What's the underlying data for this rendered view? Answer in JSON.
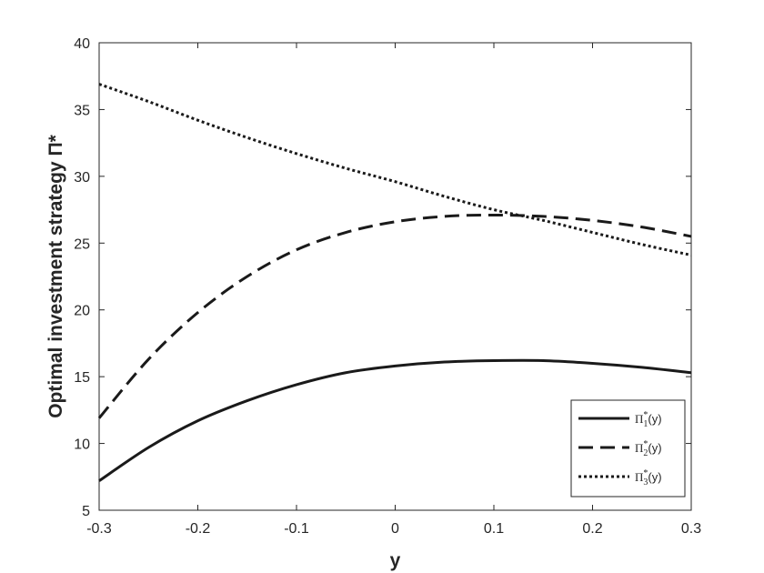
{
  "chart_data": {
    "type": "line",
    "title": "",
    "xlabel": "y",
    "ylabel": "Optimal investment strategy Π*",
    "xlim": [
      -0.3,
      0.3
    ],
    "ylim": [
      5,
      40
    ],
    "xticks": [
      -0.3,
      -0.2,
      -0.1,
      0,
      0.1,
      0.2,
      0.3
    ],
    "xtick_labels": [
      "-0.3",
      "-0.2",
      "-0.1",
      "0",
      "0.1",
      "0.2",
      "0.3"
    ],
    "yticks": [
      5,
      10,
      15,
      20,
      25,
      30,
      35,
      40
    ],
    "ytick_labels": [
      "5",
      "10",
      "15",
      "20",
      "25",
      "30",
      "35",
      "40"
    ],
    "grid": false,
    "legend_position": "bottom-right",
    "x": [
      -0.3,
      -0.25,
      -0.2,
      -0.15,
      -0.1,
      -0.05,
      0,
      0.05,
      0.1,
      0.15,
      0.2,
      0.25,
      0.3
    ],
    "series": [
      {
        "name": "Π1*(y)",
        "legend_base": "Π",
        "legend_sub": "1",
        "legend_suffix": "(y)",
        "style": "solid",
        "color": "#1a1a1a",
        "values": [
          7.2,
          9.7,
          11.7,
          13.2,
          14.4,
          15.3,
          15.8,
          16.1,
          16.2,
          16.2,
          16.0,
          15.7,
          15.3
        ]
      },
      {
        "name": "Π2*(y)",
        "legend_base": "Π",
        "legend_sub": "2",
        "legend_suffix": "(y)",
        "style": "dashed",
        "color": "#1a1a1a",
        "values": [
          11.9,
          16.3,
          19.8,
          22.5,
          24.5,
          25.8,
          26.6,
          27.0,
          27.1,
          27.0,
          26.7,
          26.2,
          25.5
        ]
      },
      {
        "name": "Π3*(y)",
        "legend_base": "Π",
        "legend_sub": "3",
        "legend_suffix": "(y)",
        "style": "dotted",
        "color": "#1a1a1a",
        "values": [
          36.9,
          35.6,
          34.2,
          32.9,
          31.7,
          30.6,
          29.6,
          28.5,
          27.5,
          26.7,
          25.8,
          24.9,
          24.1
        ]
      }
    ]
  }
}
